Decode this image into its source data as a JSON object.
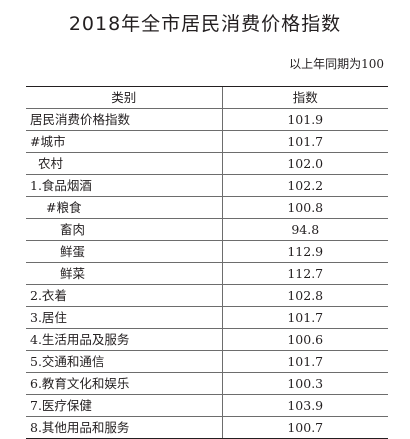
{
  "title": "2018年全市居民消费价格指数",
  "note": "以上年同期为100",
  "headers": {
    "category": "类别",
    "index": "指数"
  },
  "rows": [
    {
      "name": "居民消费价格指数",
      "value": "101.9"
    },
    {
      "name": "#城市",
      "value": "101.7"
    },
    {
      "name": "农村",
      "value": "102.0"
    },
    {
      "name": "1.食品烟酒",
      "value": "102.2"
    },
    {
      "name": "#粮食",
      "value": "100.8"
    },
    {
      "name": "畜肉",
      "value": "94.8"
    },
    {
      "name": "鲜蛋",
      "value": "112.9"
    },
    {
      "name": "鲜菜",
      "value": "112.7"
    },
    {
      "name": "2.衣着",
      "value": "102.8"
    },
    {
      "name": "3.居住",
      "value": "101.7"
    },
    {
      "name": "4.生活用品及服务",
      "value": "100.6"
    },
    {
      "name": "5.交通和通信",
      "value": "101.7"
    },
    {
      "name": "6.教育文化和娱乐",
      "value": "100.3"
    },
    {
      "name": "7.医疗保健",
      "value": "103.9"
    },
    {
      "name": "8.其他用品和服务",
      "value": "100.7"
    }
  ]
}
